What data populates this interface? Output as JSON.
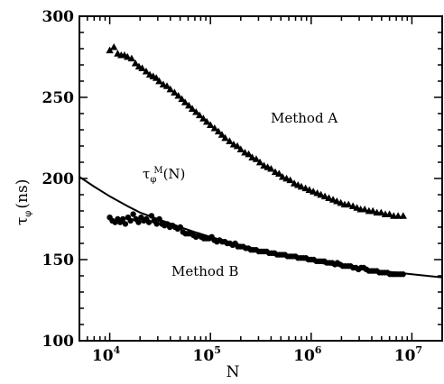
{
  "chart_data": {
    "type": "scatter",
    "x_scale": "log",
    "xlim": [
      5000,
      20000000
    ],
    "ylim": [
      100,
      300
    ],
    "xlabel": "N",
    "ylabel": "τ",
    "ylabel_sub": "φ",
    "ylabel_unit": "(ns)",
    "x_tick_labels": [
      {
        "base": "10",
        "exp": "4",
        "value": 10000
      },
      {
        "base": "10",
        "exp": "5",
        "value": 100000
      },
      {
        "base": "10",
        "exp": "6",
        "value": 1000000
      },
      {
        "base": "10",
        "exp": "7",
        "value": 10000000
      }
    ],
    "y_ticks": [
      100,
      150,
      200,
      250,
      300
    ],
    "grid": false,
    "annotations": {
      "method_a": "Method A",
      "method_b": "Method B",
      "curve_label_base": "τ",
      "curve_label_sub": "φ",
      "curve_label_sup": "M",
      "curve_label_arg": "(N)"
    },
    "series": [
      {
        "marker": "triangle",
        "points": [
          [
            10000,
            279
          ],
          [
            11000,
            281
          ],
          [
            12000,
            277
          ],
          [
            13000,
            276
          ],
          [
            14000,
            276
          ],
          [
            15000,
            275
          ],
          [
            16500,
            274
          ],
          [
            18000,
            271
          ],
          [
            19500,
            269
          ],
          [
            21000,
            268
          ],
          [
            23000,
            266
          ],
          [
            25000,
            264
          ],
          [
            27000,
            263
          ],
          [
            29000,
            262
          ],
          [
            31000,
            260
          ],
          [
            34000,
            258
          ],
          [
            37000,
            257
          ],
          [
            40000,
            255
          ],
          [
            44000,
            253
          ],
          [
            48000,
            251
          ],
          [
            52000,
            249
          ],
          [
            56000,
            247
          ],
          [
            61000,
            245
          ],
          [
            66000,
            243
          ],
          [
            72000,
            241
          ],
          [
            78000,
            239
          ],
          [
            85000,
            237
          ],
          [
            92000,
            235
          ],
          [
            100000,
            233
          ],
          [
            110000,
            231
          ],
          [
            120000,
            229
          ],
          [
            130000,
            227
          ],
          [
            140000,
            225
          ],
          [
            155000,
            223
          ],
          [
            170000,
            221
          ],
          [
            185000,
            220
          ],
          [
            200000,
            218
          ],
          [
            220000,
            216
          ],
          [
            240000,
            215
          ],
          [
            260000,
            213
          ],
          [
            285000,
            212
          ],
          [
            310000,
            210
          ],
          [
            340000,
            208
          ],
          [
            370000,
            207
          ],
          [
            400000,
            206
          ],
          [
            440000,
            204
          ],
          [
            480000,
            203
          ],
          [
            520000,
            201
          ],
          [
            570000,
            200
          ],
          [
            620000,
            199
          ],
          [
            680000,
            197
          ],
          [
            740000,
            196
          ],
          [
            800000,
            195
          ],
          [
            880000,
            194
          ],
          [
            960000,
            193
          ],
          [
            1050000,
            192
          ],
          [
            1150000,
            191
          ],
          [
            1250000,
            190
          ],
          [
            1370000,
            189
          ],
          [
            1500000,
            188
          ],
          [
            1650000,
            187
          ],
          [
            1800000,
            186
          ],
          [
            1970000,
            185
          ],
          [
            2150000,
            184
          ],
          [
            2350000,
            184
          ],
          [
            2600000,
            183
          ],
          [
            2850000,
            182
          ],
          [
            3100000,
            181
          ],
          [
            3400000,
            181
          ],
          [
            3750000,
            180
          ],
          [
            4100000,
            180
          ],
          [
            4500000,
            179
          ],
          [
            4950000,
            179
          ],
          [
            5450000,
            178
          ],
          [
            6000000,
            178
          ],
          [
            6600000,
            177
          ],
          [
            7300000,
            177
          ],
          [
            8200000,
            177
          ]
        ]
      },
      {
        "marker": "circle",
        "points": [
          [
            10000,
            176
          ],
          [
            10600,
            174
          ],
          [
            11300,
            173
          ],
          [
            12000,
            175
          ],
          [
            12700,
            173
          ],
          [
            13500,
            175
          ],
          [
            14300,
            172
          ],
          [
            15200,
            176
          ],
          [
            16100,
            174
          ],
          [
            17100,
            178
          ],
          [
            18200,
            175
          ],
          [
            19300,
            173
          ],
          [
            20500,
            176
          ],
          [
            21800,
            174
          ],
          [
            23100,
            175
          ],
          [
            24500,
            173
          ],
          [
            26000,
            177
          ],
          [
            27600,
            174
          ],
          [
            29300,
            172
          ],
          [
            31100,
            175
          ],
          [
            33000,
            172
          ],
          [
            35000,
            171
          ],
          [
            37200,
            172
          ],
          [
            39500,
            170
          ],
          [
            42000,
            171
          ],
          [
            44500,
            170
          ],
          [
            47300,
            169
          ],
          [
            50200,
            170
          ],
          [
            53300,
            167
          ],
          [
            56600,
            166
          ],
          [
            60100,
            166
          ],
          [
            63800,
            166
          ],
          [
            67700,
            165
          ],
          [
            71900,
            164
          ],
          [
            76300,
            165
          ],
          [
            81000,
            164
          ],
          [
            86000,
            163
          ],
          [
            91300,
            163
          ],
          [
            97000,
            163
          ],
          [
            103000,
            164
          ],
          [
            109000,
            162
          ],
          [
            116000,
            161
          ],
          [
            123000,
            162
          ],
          [
            131000,
            161
          ],
          [
            139000,
            161
          ],
          [
            147000,
            160
          ],
          [
            156000,
            160
          ],
          [
            166000,
            159
          ],
          [
            176000,
            160
          ],
          [
            187000,
            158
          ],
          [
            198000,
            158
          ],
          [
            211000,
            158
          ],
          [
            224000,
            157
          ],
          [
            238000,
            157
          ],
          [
            252000,
            156
          ],
          [
            268000,
            156
          ],
          [
            284000,
            156
          ],
          [
            302000,
            155
          ],
          [
            320000,
            155
          ],
          [
            340000,
            155
          ],
          [
            361000,
            155
          ],
          [
            383000,
            154
          ],
          [
            407000,
            154
          ],
          [
            432000,
            154
          ],
          [
            459000,
            153
          ],
          [
            487000,
            153
          ],
          [
            517000,
            153
          ],
          [
            549000,
            153
          ],
          [
            583000,
            152
          ],
          [
            619000,
            152
          ],
          [
            657000,
            152
          ],
          [
            698000,
            152
          ],
          [
            741000,
            151
          ],
          [
            787000,
            151
          ],
          [
            835000,
            151
          ],
          [
            887000,
            151
          ],
          [
            942000,
            150
          ],
          [
            1000000,
            150
          ],
          [
            1060000,
            150
          ],
          [
            1130000,
            149
          ],
          [
            1200000,
            149
          ],
          [
            1270000,
            149
          ],
          [
            1350000,
            149
          ],
          [
            1430000,
            148
          ],
          [
            1520000,
            148
          ],
          [
            1620000,
            148
          ],
          [
            1720000,
            147
          ],
          [
            1820000,
            148
          ],
          [
            1940000,
            147
          ],
          [
            2060000,
            146
          ],
          [
            2180000,
            146
          ],
          [
            2320000,
            146
          ],
          [
            2460000,
            146
          ],
          [
            2610000,
            145
          ],
          [
            2780000,
            145
          ],
          [
            2950000,
            144
          ],
          [
            3130000,
            145
          ],
          [
            3320000,
            145
          ],
          [
            3530000,
            144
          ],
          [
            3750000,
            143
          ],
          [
            3980000,
            143
          ],
          [
            4220000,
            143
          ],
          [
            4490000,
            143
          ],
          [
            4760000,
            142
          ],
          [
            5060000,
            142
          ],
          [
            5370000,
            142
          ],
          [
            5700000,
            142
          ],
          [
            6050000,
            141
          ],
          [
            6430000,
            141
          ],
          [
            6820000,
            141
          ],
          [
            7250000,
            141
          ],
          [
            7690000,
            141
          ],
          [
            8170000,
            141
          ]
        ]
      },
      {
        "marker": "line",
        "points": [
          [
            5000,
            201
          ],
          [
            7000,
            195
          ],
          [
            10000,
            189
          ],
          [
            15000,
            183
          ],
          [
            20000,
            179
          ],
          [
            30000,
            175
          ],
          [
            50000,
            170
          ],
          [
            70000,
            167
          ],
          [
            100000,
            164
          ],
          [
            150000,
            161
          ],
          [
            200000,
            159
          ],
          [
            300000,
            156
          ],
          [
            500000,
            153
          ],
          [
            700000,
            151
          ],
          [
            1000000,
            149
          ],
          [
            1500000,
            147
          ],
          [
            2000000,
            146
          ],
          [
            3000000,
            144
          ],
          [
            5000000,
            143
          ],
          [
            7000000,
            142
          ],
          [
            10000000,
            141
          ],
          [
            20000000,
            139
          ]
        ]
      }
    ]
  }
}
